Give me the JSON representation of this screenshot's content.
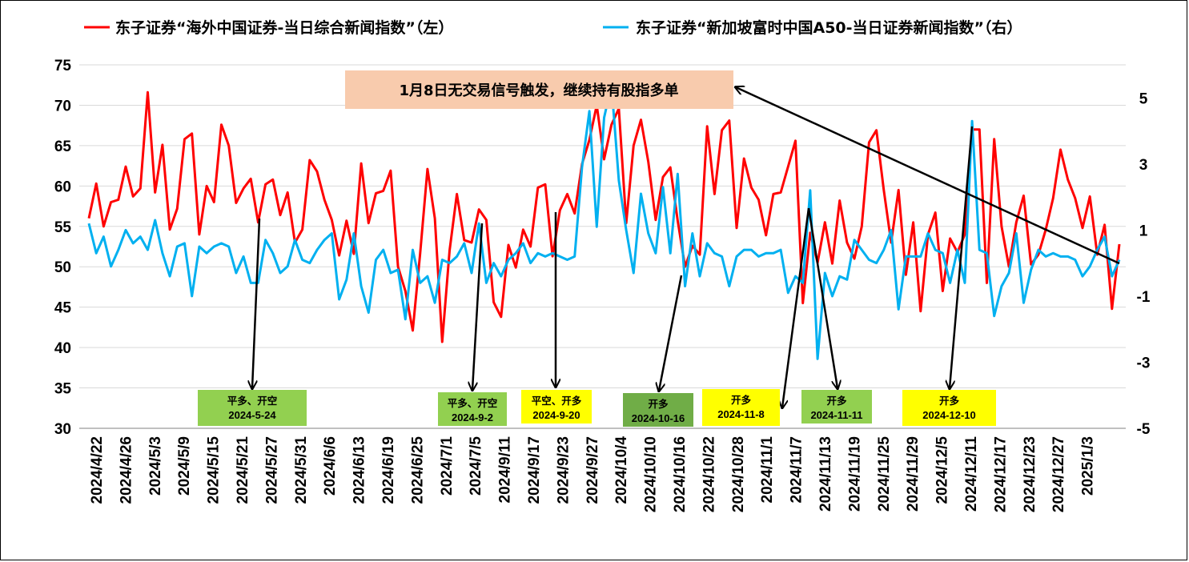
{
  "chart_data": {
    "type": "line",
    "legend": {
      "position": "top",
      "items": [
        {
          "label": "东子证券“海外中国证券-当日综合新闻指数”（左）",
          "color": "#ff0000"
        },
        {
          "label": "东子证券“新加坡富时中国A50-当日证券新闻指数”（右）",
          "color": "#00b0f0"
        }
      ]
    },
    "grid": true,
    "left_axis": {
      "min": 30,
      "max": 75,
      "ticks": [
        "30",
        "35",
        "40",
        "45",
        "50",
        "55",
        "60",
        "65",
        "70",
        "75"
      ]
    },
    "right_axis": {
      "min": -5,
      "max": 6,
      "ticks": [
        "-5",
        "-3",
        "-1",
        "1",
        "3",
        "5"
      ]
    },
    "x_tick_labels": [
      "2024/4/22",
      "2024/4/26",
      "2024/5/3",
      "2024/5/9",
      "2024/5/15",
      "2024/5/21",
      "2024/5/27",
      "2024/5/31",
      "2024/6/6",
      "2024/6/13",
      "2024/6/19",
      "2024/6/25",
      "2024/7/1",
      "2024/7/5",
      "2024/9/11",
      "2024/9/17",
      "2024/9/23",
      "2024/9/27",
      "2024/10/4",
      "2024/10/10",
      "2024/10/16",
      "2024/10/22",
      "2024/10/28",
      "2024/11/1",
      "2024/11/7",
      "2024/11/13",
      "2024/11/19",
      "2024/11/25",
      "2024/11/29",
      "2024/12/5",
      "2024/12/11",
      "2024/12/17",
      "2024/12/23",
      "2024/12/27",
      "2025/1/3"
    ],
    "series": [
      {
        "name": "东子证券“海外中国证券-当日综合新闻指数”（左）",
        "axis": "left",
        "color": "#ff0000",
        "values": [
          56,
          60.3,
          55,
          58,
          58.3,
          62.4,
          58.7,
          59.7,
          71.6,
          59.2,
          65.1,
          54.6,
          57.2,
          65.8,
          66.5,
          54,
          60,
          58,
          67.6,
          65,
          57.9,
          59.7,
          60.9,
          55.5,
          60.2,
          60.8,
          56.4,
          59.2,
          53,
          54.6,
          63.2,
          61.8,
          58.3,
          55.8,
          51.4,
          55.7,
          51.6,
          62.8,
          55.4,
          59.1,
          59.4,
          61.9,
          50,
          47,
          42.1,
          51.6,
          62.1,
          56,
          40.7,
          52,
          59,
          53.3,
          53,
          57.1,
          55.8,
          45.6,
          43.8,
          52.7,
          49.9,
          54.6,
          52.5,
          59.8,
          60.2,
          51.3,
          57,
          59,
          56.6,
          62.7,
          65.7,
          70,
          63.3,
          67.6,
          69.6,
          55.4,
          65,
          68.2,
          63,
          55.8,
          61.1,
          62.3,
          55.7,
          50,
          52.6,
          51.5,
          67.4,
          59,
          66.9,
          68.1,
          54.8,
          63.4,
          59.8,
          58.3,
          53.9,
          59,
          59.2,
          62.4,
          65.6,
          45.5,
          54.2,
          50.5,
          55.5,
          50.4,
          58.2,
          53,
          51,
          55,
          65.4,
          66.9,
          59.5,
          53,
          59.5,
          49,
          55.5,
          44.5,
          54,
          56.7,
          47,
          53.5,
          51.8,
          54,
          67,
          67,
          48,
          65.8,
          55,
          50,
          55.5,
          58.8,
          50.3,
          51.5,
          54.6,
          58.5,
          64.5,
          60.8,
          58.5,
          54.8,
          58.7,
          51.5,
          55.2,
          44.8,
          52.8
        ]
      },
      {
        "name": "东子证券“新加坡富时中国A50-当日证券新闻指数”（右）",
        "axis": "right",
        "color": "#00b0f0",
        "values": [
          1.2,
          0.3,
          0.8,
          -0.1,
          0.4,
          1,
          0.6,
          0.8,
          0.4,
          1.3,
          0.3,
          -0.4,
          0.5,
          0.6,
          -1,
          0.5,
          0.3,
          0.5,
          0.6,
          0.5,
          -0.3,
          0.2,
          -0.6,
          -0.6,
          0.7,
          0.3,
          -0.3,
          -0.1,
          0.7,
          0.1,
          0,
          0.4,
          0.7,
          0.9,
          -1.1,
          -0.5,
          0.9,
          -0.7,
          -1.5,
          0.1,
          0.4,
          -0.3,
          -0.2,
          -1.7,
          0.4,
          -0.6,
          -0.4,
          -1.2,
          0.1,
          0,
          0.2,
          0.6,
          -0.3,
          1.2,
          -0.6,
          0,
          -0.4,
          0.1,
          0.3,
          0.6,
          0,
          0.3,
          0.2,
          0.3,
          0.2,
          0.1,
          0.2,
          2.9,
          4.6,
          1.1,
          4.4,
          5.4,
          2.5,
          1,
          -0.3,
          2.1,
          0.9,
          0.3,
          2.3,
          0.3,
          2.7,
          -0.7,
          0.9,
          -0.4,
          0.6,
          0.3,
          0.2,
          -0.7,
          0.2,
          0.4,
          0.4,
          0.2,
          0.3,
          0.3,
          0.4,
          -0.9,
          -0.4,
          -0.6,
          2.2,
          -2.9,
          -0.3,
          -1,
          -0.4,
          -0.5,
          0.7,
          0.4,
          0.1,
          0,
          0.4,
          1,
          -1.4,
          0.2,
          0.2,
          0.2,
          0.9,
          0.4,
          0.3,
          -0.6,
          0.4,
          -0.6,
          4.3,
          0.4,
          0.3,
          -1.6,
          -0.7,
          -0.3,
          0.9,
          -1.2,
          -0.2,
          0.4,
          0.2,
          0.3,
          0.2,
          0.2,
          0.1,
          -0.4,
          -0.1,
          0.4,
          0.8,
          -0.4,
          0.1
        ]
      }
    ],
    "signals": [
      {
        "line1": "平多、开空",
        "line2": "2024-5-24",
        "color": "#92d050"
      },
      {
        "line1": "平多、开空",
        "line2": "2024-9-2",
        "color": "#92d050"
      },
      {
        "line1": "平空、开多",
        "line2": "2024-9-20",
        "color": "#ffff00"
      },
      {
        "line1": "开多",
        "line2": "2024-10-16",
        "color": "#70ad47"
      },
      {
        "line1": "开多",
        "line2": "2024-11-8",
        "color": "#ffff00"
      },
      {
        "line1": "开多",
        "line2": "2024-11-11",
        "color": "#92d050"
      },
      {
        "line1": "开多",
        "line2": "2024-12-10",
        "color": "#ffff00"
      }
    ],
    "note": {
      "text": "1月8日无交易信号触发，继续持有股指多单",
      "color": "#f8cbad"
    }
  }
}
